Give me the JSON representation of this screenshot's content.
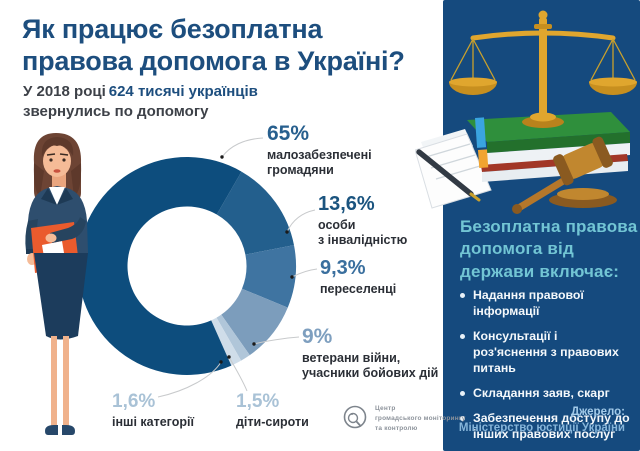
{
  "header": {
    "title_line1": "Як працює безоплатна",
    "title_line2": "правова допомога в Україні?",
    "subtitle_prefix": "У 2018 році",
    "subtitle_highlight": "624 тисячі українців",
    "subtitle_line2": "звернулись по допомогу"
  },
  "chart_data": {
    "type": "pie",
    "donut": true,
    "unit": "%",
    "clockwise_from_deg": 30,
    "slices": [
      {
        "label": "особи з інвалідністю",
        "value": 13.6,
        "value_label": "13,6%",
        "color": "#235f8d"
      },
      {
        "label": "переселенці",
        "value": 9.3,
        "value_label": "9,3%",
        "color": "#3f74a1"
      },
      {
        "label": "ветерани війни, учасники бойових дій",
        "value": 9,
        "value_label": "9%",
        "color": "#7c9dbc"
      },
      {
        "label": "діти-сироти",
        "value": 1.5,
        "value_label": "1,5%",
        "color": "#b0c6d9"
      },
      {
        "label": "інші категорії",
        "value": 1.6,
        "value_label": "1,6%",
        "color": "#cfdde9"
      },
      {
        "label": "малозабезпечені громадяни",
        "value": 65,
        "value_label": "65%",
        "color": "#0d4d7d"
      }
    ]
  },
  "callouts": {
    "c65": {
      "pct": "65%",
      "line1": "малозабезпечені",
      "line2": "громадяни"
    },
    "c136": {
      "pct": "13,6%",
      "line1": "особи",
      "line2": "з інвалідністю"
    },
    "c93": {
      "pct": "9,3%",
      "line1": "переселенці"
    },
    "c9": {
      "pct": "9%",
      "line1": "ветерани війни,",
      "line2": "учасники бойових дій"
    },
    "c16": {
      "pct": "1,6%",
      "line1": "інші категорії"
    },
    "c15": {
      "pct": "1,5%",
      "line1": "діти-сироти"
    }
  },
  "sidebar": {
    "heading_line1": "Безоплатна правова",
    "heading_line2": "допомога від",
    "heading_line3": "держави включає:",
    "bullets": [
      "Надання правової інформації",
      "Консультації і роз'яснення з правових питань",
      "Складання заяв, скарг",
      "Забезпечення доступу до інших правових послуг"
    ],
    "source_label": "Джерело:",
    "source_value": "Міністерство юстиції України"
  },
  "logo": {
    "line1": "Центр",
    "line2": "громадського моніторингу",
    "line3": "та контролю"
  },
  "colors": {
    "title_blue": "#1d4e7e",
    "panel_bg": "#154a7e",
    "heading_teal": "#72c5d4",
    "donut_dark": "#0d4d7d"
  }
}
